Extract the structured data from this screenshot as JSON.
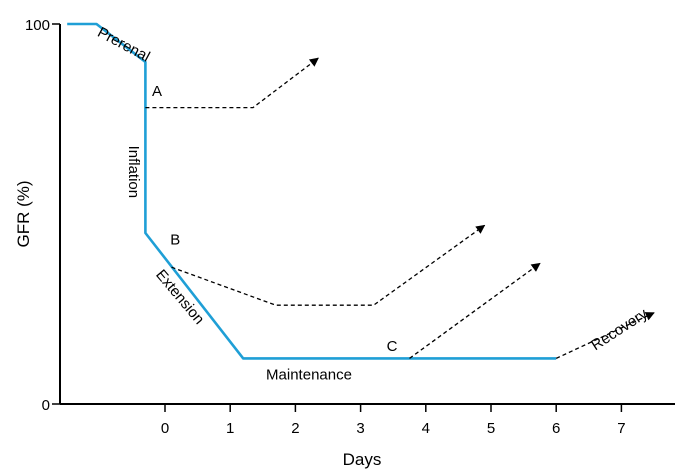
{
  "chart_data": {
    "type": "line",
    "title": "",
    "xlabel": "Days",
    "ylabel": "GFR (%)",
    "xlim": [
      -1.5,
      7.5
    ],
    "ylim": [
      0,
      100
    ],
    "x_ticks": [
      0,
      1,
      2,
      3,
      4,
      5,
      6,
      7
    ],
    "y_ticks": [
      0,
      100
    ],
    "grid": false,
    "legend": "none",
    "series": [
      {
        "style": "solid",
        "color": "#1f9fd6",
        "points": [
          [
            -1.5,
            100
          ],
          [
            -1.05,
            100
          ],
          [
            -0.3,
            90
          ],
          [
            -0.3,
            45
          ],
          [
            1.2,
            12
          ],
          [
            6.0,
            12
          ]
        ]
      },
      {
        "style": "dashed",
        "color": "#000000",
        "points": [
          [
            -0.3,
            78
          ],
          [
            1.35,
            78
          ],
          [
            2.35,
            91
          ]
        ],
        "arrow": true
      },
      {
        "style": "dashed",
        "color": "#000000",
        "points": [
          [
            0.1,
            36
          ],
          [
            1.7,
            26
          ],
          [
            3.2,
            26
          ],
          [
            4.9,
            47
          ]
        ],
        "arrow": true
      },
      {
        "style": "dashed",
        "color": "#000000",
        "points": [
          [
            3.75,
            12
          ],
          [
            5.75,
            37
          ]
        ],
        "arrow": true
      },
      {
        "style": "dashed",
        "color": "#000000",
        "points": [
          [
            6.0,
            12
          ],
          [
            7.5,
            24
          ]
        ],
        "arrow": true
      }
    ],
    "annotations": [
      {
        "id": "prerenal",
        "text": "Prerenal",
        "x": -1.05,
        "y": 97,
        "rotate": 28
      },
      {
        "id": "inflation",
        "text": "Inflation",
        "x": -0.55,
        "y": 68,
        "rotate": 90
      },
      {
        "id": "extension",
        "text": "Extension",
        "x": -0.15,
        "y": 34,
        "rotate": 50
      },
      {
        "id": "maintenance",
        "text": "Maintenance",
        "x": 1.55,
        "y": 6.5,
        "rotate": 0
      },
      {
        "id": "recovery",
        "text": "Recovery",
        "x": 6.6,
        "y": 14,
        "rotate": -33
      },
      {
        "id": "point-a",
        "text": "A",
        "x": -0.2,
        "y": 81,
        "rotate": 0
      },
      {
        "id": "point-b",
        "text": "B",
        "x": 0.08,
        "y": 42,
        "rotate": 0
      },
      {
        "id": "point-c",
        "text": "C",
        "x": 3.4,
        "y": 14,
        "rotate": 0
      }
    ]
  }
}
